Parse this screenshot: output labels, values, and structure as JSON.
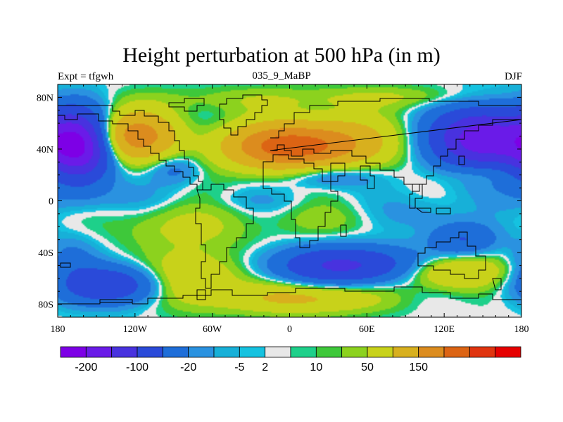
{
  "chart_data": {
    "type": "heatmap",
    "title": "Height perturbation at 500 hPa (in m)",
    "left_label": "Expt = tfgwh",
    "center_label": "035_9_MaBP",
    "right_label": "DJF",
    "x_range": [
      -180,
      180
    ],
    "y_range": [
      -90,
      90
    ],
    "x_ticks": [
      {
        "value": -180,
        "label": "180"
      },
      {
        "value": -120,
        "label": "120W"
      },
      {
        "value": -60,
        "label": "60W"
      },
      {
        "value": 0,
        "label": "0"
      },
      {
        "value": 60,
        "label": "60E"
      },
      {
        "value": 120,
        "label": "120E"
      },
      {
        "value": 180,
        "label": "180"
      }
    ],
    "y_ticks": [
      {
        "value": 80,
        "label": "80N"
      },
      {
        "value": 40,
        "label": "40N"
      },
      {
        "value": 0,
        "label": "0"
      },
      {
        "value": -40,
        "label": "40S"
      },
      {
        "value": -80,
        "label": "80S"
      }
    ],
    "colorbar": {
      "colors": [
        "#7d00e6",
        "#6a1be8",
        "#4832df",
        "#2a4ad9",
        "#1e6ed9",
        "#2a92e0",
        "#17b0d8",
        "#15c2e0",
        "#e8e8e8",
        "#1ed08a",
        "#3ec83a",
        "#8cd21e",
        "#c8d21a",
        "#d8b01e",
        "#dc8c1e",
        "#dc6414",
        "#e0340f",
        "#e60000"
      ],
      "labels": [
        "-200",
        "-100",
        "-20",
        "-5",
        "2",
        "10",
        "50",
        "150"
      ],
      "label_after_box": [
        1,
        3,
        5,
        7,
        8,
        10,
        12,
        14
      ]
    },
    "anomalies": [
      {
        "lon": -163,
        "lat": 42,
        "value": -200,
        "sx": 17,
        "sy": 18
      },
      {
        "lon": -120,
        "lat": 50,
        "value": 130,
        "sx": 22,
        "sy": 13
      },
      {
        "lon": -90,
        "lat": 25,
        "value": -30,
        "sx": 14,
        "sy": 8
      },
      {
        "lon": -5,
        "lat": 42,
        "value": 160,
        "sx": 32,
        "sy": 12
      },
      {
        "lon": 40,
        "lat": 45,
        "value": 70,
        "sx": 30,
        "sy": 14
      },
      {
        "lon": 30,
        "lat": 20,
        "value": -40,
        "sx": 24,
        "sy": 7
      },
      {
        "lon": 150,
        "lat": 48,
        "value": -190,
        "sx": 26,
        "sy": 16
      },
      {
        "lon": 150,
        "lat": 22,
        "value": 25,
        "sx": 20,
        "sy": 6
      },
      {
        "lon": -150,
        "lat": 3,
        "value": -12,
        "sx": 40,
        "sy": 9
      },
      {
        "lon": -20,
        "lat": 0,
        "value": -8,
        "sx": 30,
        "sy": 6
      },
      {
        "lon": -80,
        "lat": -20,
        "value": 25,
        "sx": 35,
        "sy": 12
      },
      {
        "lon": 30,
        "lat": -15,
        "value": 12,
        "sx": 28,
        "sy": 10
      },
      {
        "lon": 100,
        "lat": -10,
        "value": -15,
        "sx": 24,
        "sy": 10
      },
      {
        "lon": 135,
        "lat": -30,
        "value": -50,
        "sx": 18,
        "sy": 9
      },
      {
        "lon": 45,
        "lat": -50,
        "value": -110,
        "sx": 38,
        "sy": 10
      },
      {
        "lon": 125,
        "lat": -55,
        "value": 60,
        "sx": 28,
        "sy": 9
      },
      {
        "lon": -140,
        "lat": -65,
        "value": -90,
        "sx": 28,
        "sy": 10
      },
      {
        "lon": -75,
        "lat": -60,
        "value": 55,
        "sx": 24,
        "sy": 14
      },
      {
        "lon": 10,
        "lat": -75,
        "value": 60,
        "sx": 40,
        "sy": 8
      },
      {
        "lon": -40,
        "lat": 78,
        "value": 15,
        "sx": 50,
        "sy": 7
      },
      {
        "lon": 80,
        "lat": 80,
        "value": 20,
        "sx": 55,
        "sy": 6
      },
      {
        "lon": -170,
        "lat": -45,
        "value": -25,
        "sx": 14,
        "sy": 12
      }
    ]
  }
}
